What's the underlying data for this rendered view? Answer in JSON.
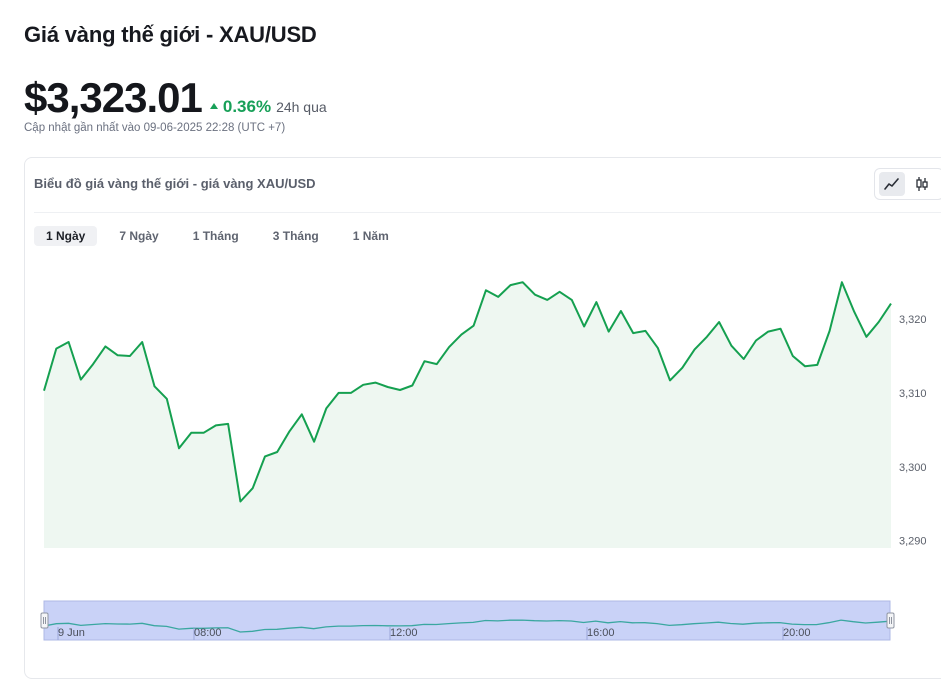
{
  "page": {
    "title": "Giá vàng thế giới - XAU/USD",
    "price": "$3,323.01",
    "change": "0.36%",
    "change_period": "24h qua",
    "updated": "Cập nhật gần nhất vào 09-06-2025 22:28 (UTC +7)"
  },
  "chart_card": {
    "title": "Biểu đồ giá vàng thế giới - giá vàng XAU/USD",
    "chart_types": [
      {
        "name": "line-chart-icon",
        "active": true
      },
      {
        "name": "candlestick-icon",
        "active": false
      }
    ],
    "ranges": [
      "1 Ngày",
      "7 Ngày",
      "1 Tháng",
      "3 Tháng",
      "1 Năm"
    ],
    "active_range": "1 Ngày"
  },
  "colors": {
    "line": "#15a050",
    "area": "#eef7f1",
    "up": "#18a058",
    "navigator_fill": "#c9d2f7",
    "navigator_line": "#3aa7a0"
  },
  "chart_data": {
    "type": "area",
    "title": "",
    "xlabel": "",
    "ylabel": "",
    "ylim": [
      3289,
      3328
    ],
    "y_ticks": [
      3290,
      3300,
      3310,
      3320
    ],
    "y_tick_labels": [
      "3,290",
      "3,300",
      "3,310",
      "3,320"
    ],
    "grid": false,
    "series": [
      {
        "values": [
          3310.3,
          3316.0,
          3316.9,
          3311.8,
          3313.9,
          3316.3,
          3315.1,
          3315.0,
          3316.9,
          3310.9,
          3309.2,
          3302.5,
          3304.6,
          3304.6,
          3305.6,
          3305.8,
          3295.3,
          3297.1,
          3301.4,
          3302.0,
          3304.8,
          3307.1,
          3303.4,
          3307.9,
          3310.0,
          3310.0,
          3311.1,
          3311.4,
          3310.8,
          3310.4,
          3311.0,
          3314.3,
          3313.9,
          3316.2,
          3317.9,
          3319.1,
          3323.9,
          3323.0,
          3324.6,
          3325.0,
          3323.3,
          3322.6,
          3323.7,
          3322.6,
          3319.0,
          3322.3,
          3318.3,
          3321.1,
          3318.1,
          3318.4,
          3316.1,
          3311.7,
          3313.4,
          3315.9,
          3317.6,
          3319.6,
          3316.4,
          3314.6,
          3317.1,
          3318.3,
          3318.7,
          3315.0,
          3313.6,
          3313.8,
          3318.4,
          3325.0,
          3321.0,
          3317.6,
          3319.6,
          3322.1
        ]
      }
    ],
    "navigator": {
      "x_labels": [
        "9 Jun",
        "08:00",
        "12:00",
        "16:00",
        "20:00"
      ]
    }
  }
}
